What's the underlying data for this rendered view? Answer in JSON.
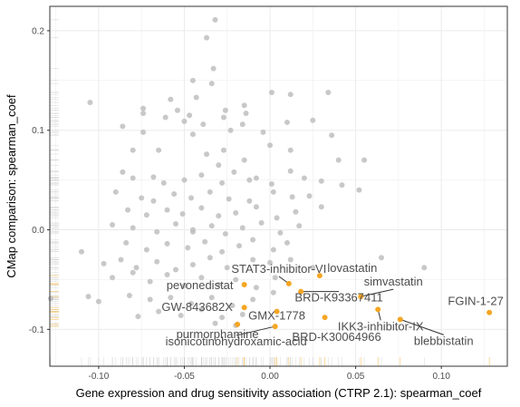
{
  "chart_data": {
    "type": "scatter",
    "title": "",
    "xlabel": "Gene expression and drug sensitivity association (CTRP 2.1): spearman_coef",
    "ylabel": "CMap comparison: spearman_coef",
    "xlim": [
      -0.1285,
      0.1385
    ],
    "ylim": [
      -0.137,
      0.2245
    ],
    "x_ticks": [
      -0.1,
      -0.05,
      0.0,
      0.05,
      0.1
    ],
    "x_tick_labels": [
      "-0.10",
      "-0.05",
      "0.00",
      "0.05",
      "0.10"
    ],
    "y_ticks": [
      -0.1,
      0.0,
      0.1,
      0.2
    ],
    "y_tick_labels": [
      "-0.1",
      "0.0",
      "0.1",
      "0.2"
    ],
    "grid": true,
    "rug": true,
    "colors": {
      "background_points": "#bebebe",
      "highlight_points": "#f5a623",
      "grid": "#ebebeb",
      "panel_border": "#333333",
      "label_text": "#4d4d4d"
    },
    "background_points": [
      [
        -0.032,
        0.211
      ],
      [
        -0.037,
        0.193
      ],
      [
        -0.033,
        0.162
      ],
      [
        -0.045,
        0.15
      ],
      [
        -0.034,
        0.147
      ],
      [
        -0.105,
        0.128
      ],
      [
        0.001,
        0.138
      ],
      [
        0.012,
        0.136
      ],
      [
        0.034,
        0.138
      ],
      [
        -0.074,
        0.122
      ],
      [
        -0.074,
        0.117
      ],
      [
        -0.058,
        0.131
      ],
      [
        -0.043,
        0.133
      ],
      [
        -0.054,
        0.12
      ],
      [
        -0.047,
        0.115
      ],
      [
        -0.061,
        0.113
      ],
      [
        -0.05,
        0.109
      ],
      [
        -0.026,
        0.12
      ],
      [
        -0.015,
        0.125
      ],
      [
        -0.014,
        0.117
      ],
      [
        -0.039,
        0.106
      ],
      [
        -0.027,
        0.113
      ],
      [
        -0.016,
        0.106
      ],
      [
        -0.086,
        0.104
      ],
      [
        -0.074,
        0.098
      ],
      [
        -0.045,
        0.096
      ],
      [
        -0.023,
        0.1
      ],
      [
        -0.004,
        0.098
      ],
      [
        0.01,
        0.108
      ],
      [
        0.025,
        0.11
      ],
      [
        -0.08,
        0.08
      ],
      [
        -0.065,
        0.08
      ],
      [
        -0.037,
        0.076
      ],
      [
        -0.027,
        0.08
      ],
      [
        -0.015,
        0.07
      ],
      [
        0.0,
        0.085
      ],
      [
        0.012,
        0.08
      ],
      [
        0.04,
        0.07
      ],
      [
        0.055,
        0.07
      ],
      [
        0.036,
        0.095
      ],
      [
        -0.086,
        0.058
      ],
      [
        -0.08,
        0.052
      ],
      [
        -0.068,
        0.053
      ],
      [
        -0.062,
        0.047
      ],
      [
        -0.05,
        0.05
      ],
      [
        -0.04,
        0.055
      ],
      [
        -0.028,
        0.047
      ],
      [
        -0.021,
        0.058
      ],
      [
        -0.008,
        0.052
      ],
      [
        0.001,
        0.046
      ],
      [
        0.012,
        0.059
      ],
      [
        0.02,
        0.052
      ],
      [
        0.03,
        0.049
      ],
      [
        0.042,
        0.045
      ],
      [
        0.052,
        0.04
      ],
      [
        -0.09,
        0.038
      ],
      [
        -0.075,
        0.032
      ],
      [
        -0.068,
        0.029
      ],
      [
        -0.056,
        0.036
      ],
      [
        -0.046,
        0.032
      ],
      [
        -0.035,
        0.038
      ],
      [
        -0.024,
        0.031
      ],
      [
        -0.012,
        0.029
      ],
      [
        0.002,
        0.038
      ],
      [
        0.013,
        0.033
      ],
      [
        0.023,
        0.034
      ],
      [
        0.03,
        0.023
      ],
      [
        -0.083,
        0.02
      ],
      [
        -0.072,
        0.015
      ],
      [
        -0.06,
        0.02
      ],
      [
        -0.051,
        0.016
      ],
      [
        -0.04,
        0.022
      ],
      [
        -0.03,
        0.014
      ],
      [
        -0.02,
        0.017
      ],
      [
        -0.008,
        0.023
      ],
      [
        0.004,
        0.012
      ],
      [
        0.015,
        0.018
      ],
      [
        -0.092,
        0.005
      ],
      [
        -0.08,
        0.002
      ],
      [
        -0.066,
        -0.002
      ],
      [
        -0.055,
        0.006
      ],
      [
        -0.045,
        0.0
      ],
      [
        -0.034,
        0.004
      ],
      [
        -0.026,
        -0.004
      ],
      [
        -0.016,
        0.002
      ],
      [
        -0.005,
        0.007
      ],
      [
        0.006,
        -0.003
      ],
      [
        0.017,
        0.004
      ],
      [
        -0.084,
        -0.013
      ],
      [
        -0.072,
        -0.02
      ],
      [
        -0.06,
        -0.014
      ],
      [
        -0.048,
        -0.018
      ],
      [
        -0.038,
        -0.012
      ],
      [
        -0.028,
        -0.022
      ],
      [
        -0.018,
        -0.016
      ],
      [
        -0.01,
        -0.01
      ],
      [
        0.002,
        -0.02
      ],
      [
        0.01,
        -0.013
      ],
      [
        -0.11,
        -0.022
      ],
      [
        -0.097,
        -0.034
      ],
      [
        -0.087,
        -0.03
      ],
      [
        -0.078,
        -0.038
      ],
      [
        -0.066,
        -0.032
      ],
      [
        -0.055,
        -0.04
      ],
      [
        -0.045,
        -0.035
      ],
      [
        -0.035,
        -0.028
      ],
      [
        -0.025,
        -0.038
      ],
      [
        -0.01,
        -0.03
      ],
      [
        0.0,
        -0.033
      ],
      [
        0.012,
        -0.03
      ],
      [
        0.025,
        -0.038
      ],
      [
        -0.092,
        -0.048
      ],
      [
        -0.08,
        -0.043
      ],
      [
        -0.07,
        -0.052
      ],
      [
        -0.06,
        -0.045
      ],
      [
        -0.05,
        -0.056
      ],
      [
        -0.04,
        -0.048
      ],
      [
        -0.03,
        -0.055
      ],
      [
        -0.02,
        -0.05
      ],
      [
        -0.008,
        -0.058
      ],
      [
        0.003,
        -0.048
      ],
      [
        0.09,
        -0.038
      ],
      [
        0.065,
        -0.028
      ],
      [
        -0.082,
        -0.066
      ],
      [
        -0.07,
        -0.07
      ],
      [
        -0.058,
        -0.068
      ],
      [
        -0.046,
        -0.074
      ],
      [
        -0.034,
        -0.068
      ],
      [
        -0.022,
        -0.076
      ],
      [
        -0.01,
        -0.07
      ],
      [
        0.002,
        -0.063
      ],
      [
        -0.065,
        -0.082
      ],
      [
        -0.052,
        -0.086
      ],
      [
        -0.04,
        -0.08
      ],
      [
        -0.028,
        -0.088
      ],
      [
        -0.016,
        -0.085
      ],
      [
        -0.077,
        -0.087
      ],
      [
        -0.032,
        -0.094
      ],
      [
        -0.02,
        -0.096
      ],
      [
        -0.1,
        -0.072
      ],
      [
        -0.128,
        -0.069
      ],
      [
        -0.106,
        -0.067
      ],
      [
        -0.03,
        0.065
      ],
      [
        -0.012,
        0.05
      ],
      [
        -0.045,
        -0.002
      ]
    ],
    "highlighted": [
      {
        "name": "STAT3-inhibitor-VI",
        "x": 0.011,
        "y": -0.054
      },
      {
        "name": "lovastatin",
        "x": 0.029,
        "y": -0.046
      },
      {
        "name": "pevonedistat",
        "x": -0.015,
        "y": -0.055
      },
      {
        "name": "simvastatin",
        "x": 0.053,
        "y": -0.067
      },
      {
        "name": "GW-843682X",
        "x": -0.015,
        "y": -0.078
      },
      {
        "name": "BRD-K93367411",
        "x": 0.018,
        "y": -0.062
      },
      {
        "name": "FGIN-1-27",
        "x": 0.128,
        "y": -0.083
      },
      {
        "name": "IKK3-inhibitor-IX",
        "x": 0.063,
        "y": -0.08
      },
      {
        "name": "GMX-1778",
        "x": 0.004,
        "y": -0.082
      },
      {
        "name": "purmorphamine",
        "x": -0.019,
        "y": -0.095
      },
      {
        "name": "BRD-K30064966",
        "x": 0.032,
        "y": -0.088
      },
      {
        "name": "blebbistatin",
        "x": 0.076,
        "y": -0.09
      },
      {
        "name": "isonicotinohydroxamic-acid",
        "x": 0.003,
        "y": -0.097
      }
    ]
  }
}
